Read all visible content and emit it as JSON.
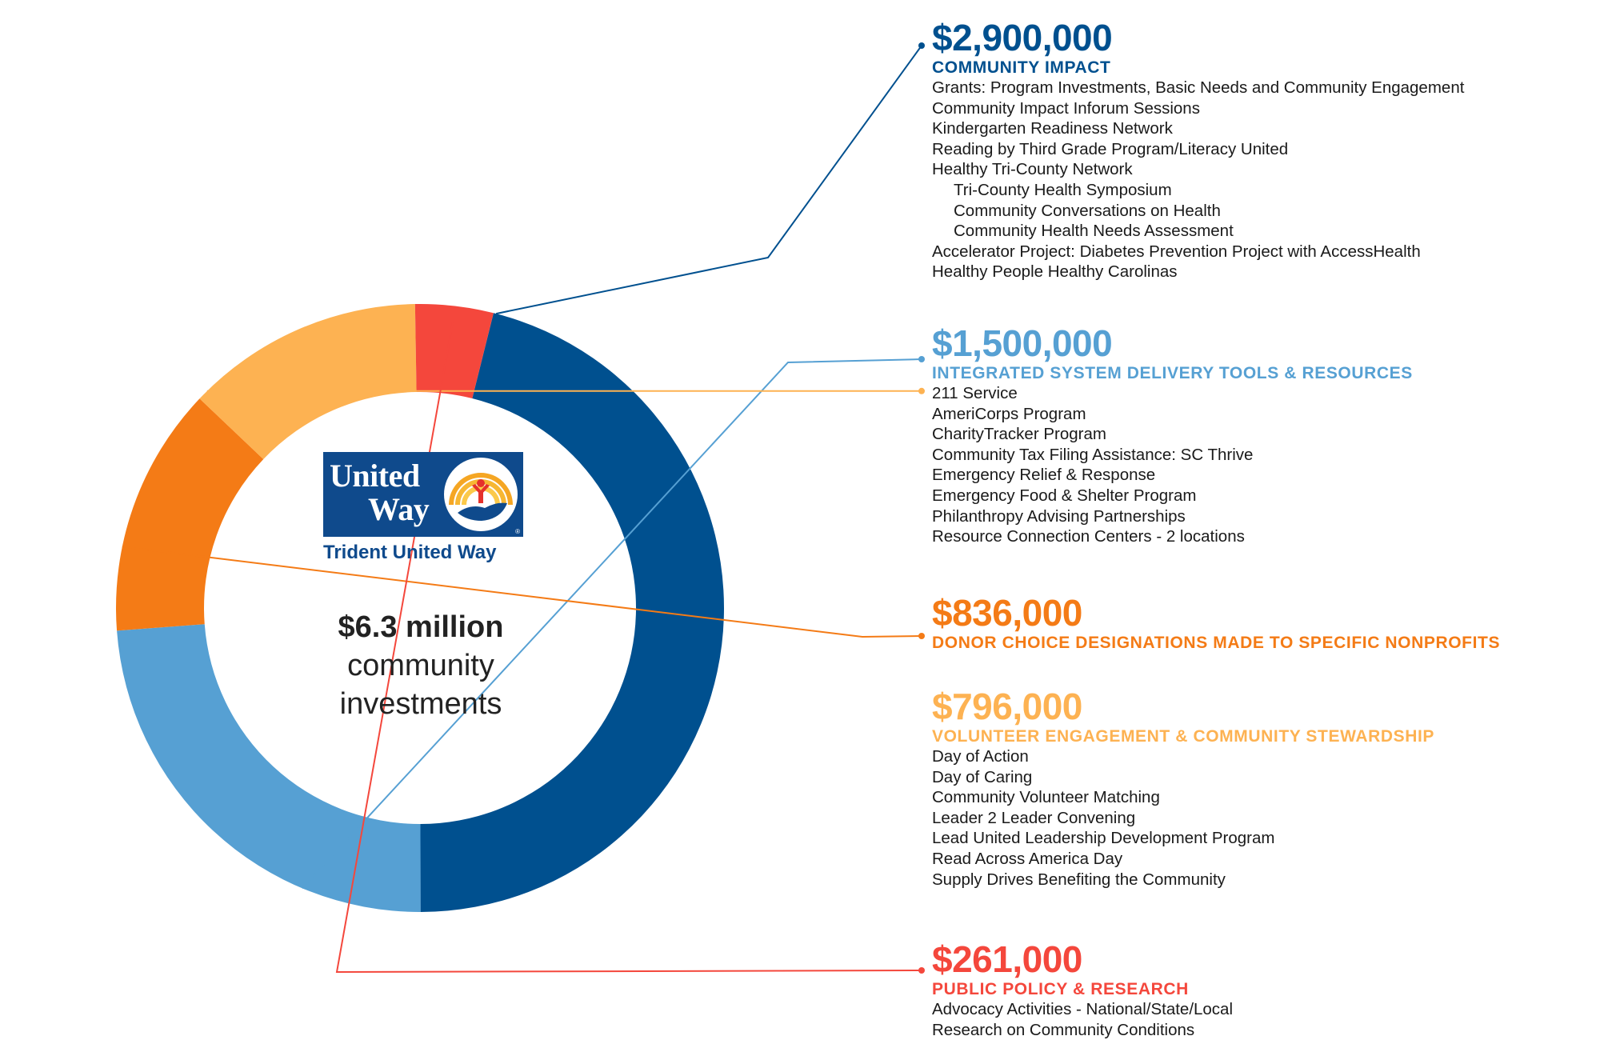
{
  "colors": {
    "community_impact": "#00508f",
    "integrated_system": "#56a0d3",
    "donor_choice": "#f47b16",
    "volunteer": "#fdb252",
    "public_policy": "#f4473c"
  },
  "logo": {
    "word1": "United",
    "word2": "Way",
    "subtitle": "Trident United Way",
    "registered": "®"
  },
  "center": {
    "amount": "$6.3 million",
    "line1": "community",
    "line2": "investments"
  },
  "segments": [
    {
      "amount": "$2,900,000",
      "category": "COMMUNITY IMPACT",
      "items": [
        "Grants: Program Investments, Basic Needs and Community Engagement",
        "Community Impact Inforum Sessions",
        "Kindergarten Readiness Network",
        "Reading by Third Grade Program/Literacy United",
        "Healthy Tri-County Network",
        "Tri-County Health Symposium",
        "Community Conversations on Health",
        "Community Health Needs Assessment",
        "Accelerator Project: Diabetes Prevention Project with AccessHealth",
        "Healthy People Healthy Carolinas"
      ]
    },
    {
      "amount": "$1,500,000",
      "category": "INTEGRATED SYSTEM DELIVERY TOOLS & RESOURCES",
      "items": [
        "211 Service",
        "AmeriCorps Program",
        "CharityTracker Program",
        "Community Tax Filing Assistance: SC Thrive",
        "Emergency Relief & Response",
        "Emergency Food & Shelter Program",
        "Philanthropy Advising Partnerships",
        "Resource Connection Centers - 2 locations"
      ]
    },
    {
      "amount": "$836,000",
      "category": "DONOR CHOICE DESIGNATIONS MADE TO SPECIFIC NONPROFITS",
      "items": []
    },
    {
      "amount": "$796,000",
      "category": "VOLUNTEER ENGAGEMENT & COMMUNITY STEWARDSHIP",
      "items": [
        "Day of Action",
        "Day of Caring",
        "Community Volunteer Matching",
        "Leader 2 Leader Convening",
        "Lead United Leadership Development Program",
        "Read Across America Day",
        "Supply Drives Benefiting the Community"
      ]
    },
    {
      "amount": "$261,000",
      "category": "PUBLIC POLICY & RESEARCH",
      "items": [
        "Advocacy Activities - National/State/Local",
        "Research on Community Conditions"
      ]
    }
  ],
  "chart_data": {
    "type": "pie",
    "donut": true,
    "categories": [
      "COMMUNITY IMPACT",
      "INTEGRATED SYSTEM DELIVERY TOOLS & RESOURCES",
      "DONOR CHOICE DESIGNATIONS MADE TO SPECIFIC NONPROFITS",
      "VOLUNTEER ENGAGEMENT & COMMUNITY STEWARDSHIP",
      "PUBLIC POLICY & RESEARCH"
    ],
    "values": [
      2900000,
      1500000,
      836000,
      796000,
      261000
    ],
    "colors": [
      "#00508f",
      "#56a0d3",
      "#f47b16",
      "#fdb252",
      "#f4473c"
    ],
    "total_label": "$6.3 million"
  }
}
